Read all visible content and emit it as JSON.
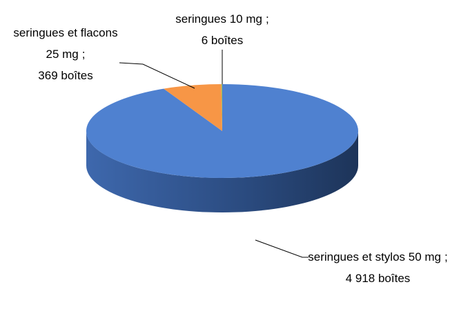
{
  "chart_data": {
    "type": "pie3d",
    "categories": [
      "seringues et stylos 50 mg",
      "seringues et flacons 25 mg",
      "seringues 10 mg"
    ],
    "values": [
      4918,
      369,
      6
    ],
    "value_labels": [
      "4 918 boîtes",
      "369 boîtes",
      "6 boîtes"
    ],
    "label_separator": ";",
    "colors": [
      "#4f81d0",
      "#f79646",
      "#9bbb59"
    ]
  }
}
